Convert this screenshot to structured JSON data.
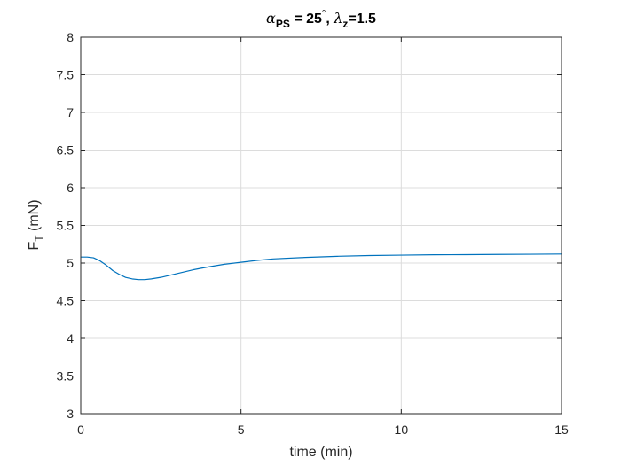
{
  "chart_data": {
    "type": "line",
    "title": {
      "alpha_symbol": "α",
      "alpha_subscript": "PS",
      "alpha_value": " = 25",
      "degree_symbol": "°",
      "separator": ", ",
      "lambda_symbol": "λ",
      "lambda_subscript": "z",
      "lambda_value": "=1.5"
    },
    "xlabel": "time (min)",
    "ylabel": {
      "main": "F",
      "subscript": "T",
      "unit": " (mN)"
    },
    "xlim": [
      0,
      15
    ],
    "ylim": [
      3,
      8
    ],
    "xticks": [
      0,
      5,
      10,
      15
    ],
    "xtick_labels": [
      "0",
      "5",
      "10",
      "15"
    ],
    "yticks": [
      3,
      3.5,
      4,
      4.5,
      5,
      5.5,
      6,
      6.5,
      7,
      7.5,
      8
    ],
    "ytick_labels": [
      "3",
      "3.5",
      "4",
      "4.5",
      "5",
      "5.5",
      "6",
      "6.5",
      "7",
      "7.5",
      "8"
    ],
    "grid": true,
    "series": [
      {
        "color": "#0072BD",
        "x": [
          0,
          0.2,
          0.4,
          0.6,
          0.8,
          1.0,
          1.2,
          1.4,
          1.6,
          1.8,
          2.0,
          2.2,
          2.5,
          3.0,
          3.5,
          4.0,
          4.5,
          5.0,
          5.5,
          6.0,
          7.0,
          8.0,
          9.0,
          10.0,
          11.0,
          12.0,
          13.0,
          14.0,
          15.0
        ],
        "y": [
          5.08,
          5.08,
          5.07,
          5.03,
          4.97,
          4.9,
          4.85,
          4.81,
          4.79,
          4.78,
          4.78,
          4.79,
          4.81,
          4.86,
          4.91,
          4.95,
          4.985,
          5.01,
          5.035,
          5.055,
          5.075,
          5.09,
          5.1,
          5.105,
          5.11,
          5.112,
          5.115,
          5.117,
          5.12
        ]
      }
    ]
  }
}
